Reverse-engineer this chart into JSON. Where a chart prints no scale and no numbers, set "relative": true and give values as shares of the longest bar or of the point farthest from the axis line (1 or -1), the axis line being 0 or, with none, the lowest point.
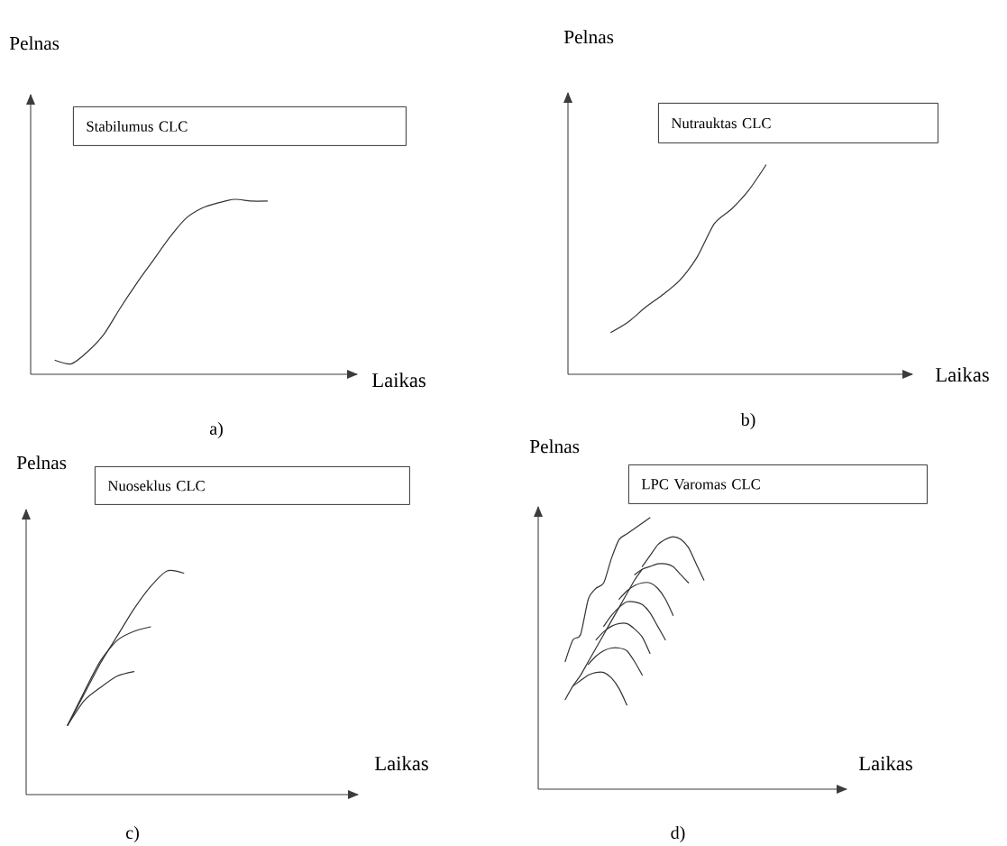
{
  "chart_data": [
    {
      "type": "line",
      "title": "Stabilumus CLC",
      "xlabel": "Laikas",
      "ylabel": "Pelnas",
      "annotations": [
        "a)"
      ],
      "relative": true,
      "marker": "none",
      "categories": [
        null,
        null,
        null,
        null,
        null,
        null,
        null,
        null,
        null,
        null,
        null,
        null,
        null,
        null,
        null,
        null,
        null,
        null,
        null,
        null
      ],
      "series": [
        {
          "color": "#333333",
          "values": [
            null,
            0.08,
            0.06,
            0.13,
            0.23,
            0.38,
            0.52,
            0.65,
            0.78,
            0.89,
            0.95,
            0.98,
            1.0,
            0.99,
            0.99,
            null,
            null,
            null,
            null,
            null
          ]
        }
      ]
    },
    {
      "type": "line",
      "title": "Nutrauktas CLC",
      "xlabel": "Laikas",
      "ylabel": "Pelnas",
      "annotations": [
        "b)"
      ],
      "relative": true,
      "marker": "none",
      "categories": [
        null,
        null,
        null,
        null,
        null,
        null,
        null,
        null,
        null,
        null,
        null,
        null,
        null,
        null,
        null,
        null,
        null,
        null,
        null,
        null
      ],
      "series": [
        {
          "color": "#333333",
          "values": [
            null,
            null,
            0.2,
            0.25,
            0.32,
            0.38,
            0.45,
            0.56,
            0.72,
            0.79,
            0.88,
            1.0,
            null,
            null,
            null,
            null,
            null,
            null,
            null,
            null
          ]
        }
      ]
    },
    {
      "type": "line",
      "title": "Nuoseklus CLC",
      "xlabel": "Laikas",
      "ylabel": "Pelnas",
      "annotations": [
        "c)"
      ],
      "relative": true,
      "marker": "none",
      "categories": [
        null,
        null,
        null,
        null,
        null,
        null,
        null,
        null,
        null,
        null,
        null,
        null,
        null,
        null,
        null,
        null,
        null,
        null,
        null,
        null
      ],
      "series": [
        {
          "color": "#333333",
          "values": [
            null,
            null,
            0.31,
            0.45,
            0.59,
            0.71,
            0.83,
            0.93,
            1.0,
            0.99,
            null,
            null,
            null,
            null,
            null,
            null,
            null,
            null,
            null,
            null
          ]
        },
        {
          "color": "#333333",
          "values": [
            null,
            null,
            0.31,
            0.46,
            0.6,
            0.69,
            0.73,
            0.75,
            null,
            null,
            null,
            null,
            null,
            null,
            null,
            null,
            null,
            null,
            null,
            null
          ]
        },
        {
          "color": "#333333",
          "values": [
            null,
            null,
            0.31,
            0.42,
            0.48,
            0.53,
            0.55,
            null,
            null,
            null,
            null,
            null,
            null,
            null,
            null,
            null,
            null,
            null,
            null,
            null
          ]
        }
      ]
    },
    {
      "type": "line",
      "title": "LPC Varomas CLC",
      "xlabel": "Laikas",
      "ylabel": "Pelnas",
      "annotations": [
        "d)"
      ],
      "relative": true,
      "marker": "none",
      "categories": [
        null,
        null,
        null,
        null,
        null,
        null,
        null,
        null,
        null,
        null,
        null,
        null,
        null,
        null,
        null,
        null,
        null,
        null,
        null,
        null,
        null,
        null,
        null,
        null,
        null,
        null,
        null,
        null,
        null,
        null,
        null,
        null,
        null,
        null,
        null,
        null,
        null,
        null,
        null,
        null
      ],
      "series": [
        {
          "color": "#333333",
          "values": [
            null,
            null,
            null,
            0.47,
            0.55,
            0.57,
            0.7,
            0.74,
            0.76,
            0.85,
            0.92,
            0.94,
            0.96,
            0.98,
            1.0,
            null,
            null,
            null,
            null,
            null,
            null,
            null,
            null,
            null,
            null,
            null,
            null,
            null,
            null,
            null,
            null,
            null,
            null,
            null,
            null,
            null,
            null,
            null,
            null,
            null
          ]
        },
        {
          "color": "#333333",
          "values": [
            null,
            null,
            null,
            0.33,
            0.38,
            0.42,
            0.47,
            0.52,
            0.57,
            0.62,
            0.67,
            0.72,
            0.77,
            0.81,
            null,
            null,
            null,
            null,
            null,
            null,
            null,
            null,
            null,
            null,
            null,
            null,
            null,
            null,
            null,
            null,
            null,
            null,
            null,
            null,
            null,
            null,
            null,
            null,
            null,
            null
          ]
        },
        {
          "color": "#333333",
          "values": [
            null,
            null,
            null,
            null,
            0.38,
            0.4,
            0.42,
            0.43,
            0.43,
            0.41,
            0.37,
            0.31,
            null,
            null,
            null,
            null,
            null,
            null,
            null,
            null,
            null,
            null,
            null,
            null,
            null,
            null,
            null,
            null,
            null,
            null,
            null,
            null,
            null,
            null,
            null,
            null,
            null,
            null,
            null,
            null
          ]
        },
        {
          "color": "#333333",
          "values": [
            null,
            null,
            null,
            null,
            null,
            null,
            0.46,
            0.49,
            0.51,
            0.52,
            0.52,
            0.51,
            0.47,
            0.42,
            null,
            null,
            null,
            null,
            null,
            null,
            null,
            null,
            null,
            null,
            null,
            null,
            null,
            null,
            null,
            null,
            null,
            null,
            null,
            null,
            null,
            null,
            null,
            null,
            null,
            null
          ]
        },
        {
          "color": "#333333",
          "values": [
            null,
            null,
            null,
            null,
            null,
            null,
            null,
            0.55,
            0.58,
            0.6,
            0.61,
            0.61,
            0.59,
            0.56,
            0.5,
            null,
            null,
            null,
            null,
            null,
            null,
            null,
            null,
            null,
            null,
            null,
            null,
            null,
            null,
            null,
            null,
            null,
            null,
            null,
            null,
            null,
            null,
            null,
            null,
            null
          ]
        },
        {
          "color": "#333333",
          "values": [
            null,
            null,
            null,
            null,
            null,
            null,
            null,
            null,
            0.6,
            0.64,
            0.67,
            0.69,
            0.69,
            0.68,
            0.65,
            0.6,
            0.55,
            null,
            null,
            null,
            null,
            null,
            null,
            null,
            null,
            null,
            null,
            null,
            null,
            null,
            null,
            null,
            null,
            null,
            null,
            null,
            null,
            null,
            null,
            null
          ]
        },
        {
          "color": "#333333",
          "values": [
            null,
            null,
            null,
            null,
            null,
            null,
            null,
            null,
            null,
            null,
            0.7,
            0.73,
            0.75,
            0.76,
            0.76,
            0.74,
            0.7,
            0.64,
            null,
            null,
            null,
            null,
            null,
            null,
            null,
            null,
            null,
            null,
            null,
            null,
            null,
            null,
            null,
            null,
            null,
            null,
            null,
            null,
            null,
            null
          ]
        },
        {
          "color": "#333333",
          "values": [
            null,
            null,
            null,
            null,
            null,
            null,
            null,
            null,
            null,
            null,
            null,
            null,
            0.79,
            0.81,
            0.82,
            0.83,
            0.83,
            0.82,
            0.79,
            0.76,
            null,
            null,
            null,
            null,
            null,
            null,
            null,
            null,
            null,
            null,
            null,
            null,
            null,
            null,
            null,
            null,
            null,
            null,
            null,
            null
          ]
        },
        {
          "color": "#333333",
          "values": [
            null,
            null,
            null,
            null,
            null,
            null,
            null,
            null,
            null,
            null,
            null,
            null,
            null,
            0.82,
            0.86,
            0.9,
            0.92,
            0.93,
            0.92,
            0.89,
            0.83,
            0.77,
            null,
            null,
            null,
            null,
            null,
            null,
            null,
            null,
            null,
            null,
            null,
            null,
            null,
            null,
            null,
            null,
            null,
            null
          ]
        }
      ]
    }
  ]
}
